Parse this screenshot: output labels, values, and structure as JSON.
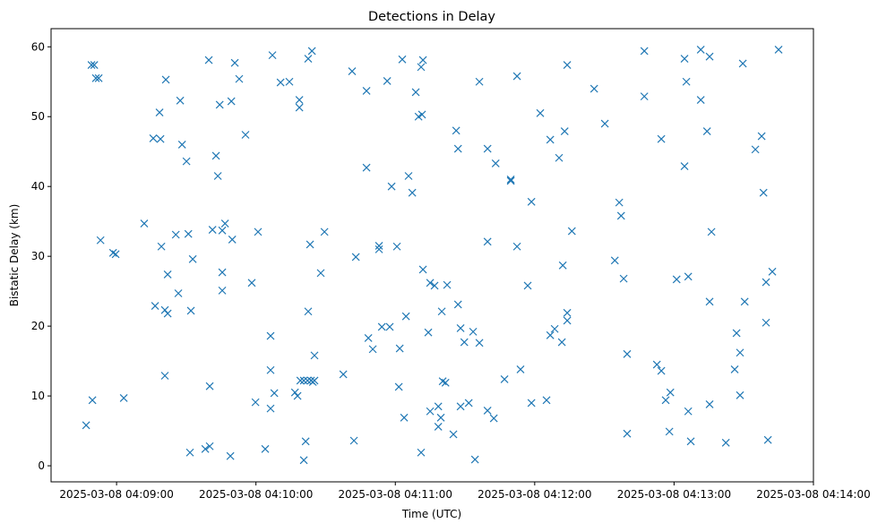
{
  "chart_data": {
    "type": "scatter",
    "title": "Detections in Delay",
    "xlabel": "Time (UTC)",
    "ylabel": "Bistatic Delay (km)",
    "x_units": "seconds since 2025-03-08 04:09:00",
    "xlim": [
      -28.2,
      300
    ],
    "ylim": [
      -2.3,
      62.6
    ],
    "x_ticks": [
      0,
      60,
      120,
      180,
      240,
      300
    ],
    "x_tick_labels": [
      "2025-03-08 04:09:00",
      "2025-03-08 04:10:00",
      "2025-03-08 04:11:00",
      "2025-03-08 04:12:00",
      "2025-03-08 04:13:00",
      "2025-03-08 04:14:00"
    ],
    "y_ticks": [
      0,
      10,
      20,
      30,
      40,
      50,
      60
    ],
    "y_tick_labels": [
      "0",
      "10",
      "20",
      "30",
      "40",
      "50",
      "60"
    ],
    "grid": false,
    "marker": "x",
    "color": "#1f77b4",
    "series": [
      {
        "name": "detections",
        "points": [
          [
            -13.1,
            5.8
          ],
          [
            -10.8,
            57.4
          ],
          [
            -9.6,
            57.4
          ],
          [
            -10.4,
            9.4
          ],
          [
            -8.9,
            55.5
          ],
          [
            -7.7,
            55.5
          ],
          [
            -6.9,
            32.3
          ],
          [
            -1.5,
            30.5
          ],
          [
            -0.4,
            30.3
          ],
          [
            3.1,
            9.7
          ],
          [
            11.9,
            34.7
          ],
          [
            15.8,
            46.9
          ],
          [
            18.9,
            46.8
          ],
          [
            16.6,
            22.9
          ],
          [
            18.5,
            50.6
          ],
          [
            19.3,
            31.4
          ],
          [
            21.2,
            55.3
          ],
          [
            20.8,
            22.3
          ],
          [
            22.0,
            21.8
          ],
          [
            22.0,
            27.4
          ],
          [
            20.8,
            12.9
          ],
          [
            25.5,
            33.1
          ],
          [
            26.6,
            24.7
          ],
          [
            27.4,
            52.3
          ],
          [
            28.2,
            46.0
          ],
          [
            30.1,
            43.6
          ],
          [
            30.9,
            33.2
          ],
          [
            32.0,
            22.2
          ],
          [
            32.8,
            29.6
          ],
          [
            31.6,
            1.9
          ],
          [
            38.2,
            2.4
          ],
          [
            40.1,
            2.8
          ],
          [
            39.7,
            58.1
          ],
          [
            40.1,
            11.4
          ],
          [
            41.3,
            33.8
          ],
          [
            42.8,
            44.4
          ],
          [
            43.6,
            41.5
          ],
          [
            44.4,
            51.7
          ],
          [
            45.5,
            33.7
          ],
          [
            46.7,
            34.7
          ],
          [
            45.5,
            27.7
          ],
          [
            45.5,
            25.1
          ],
          [
            49.4,
            52.2
          ],
          [
            49.8,
            32.4
          ],
          [
            49.0,
            1.4
          ],
          [
            50.9,
            57.7
          ],
          [
            52.8,
            55.4
          ],
          [
            55.5,
            47.4
          ],
          [
            58.2,
            26.2
          ],
          [
            60.9,
            33.5
          ],
          [
            59.8,
            9.1
          ],
          [
            64.0,
            2.4
          ],
          [
            66.3,
            18.6
          ],
          [
            66.3,
            13.7
          ],
          [
            66.3,
            8.2
          ],
          [
            67.9,
            10.4
          ],
          [
            67.1,
            58.8
          ],
          [
            70.6,
            54.9
          ],
          [
            74.4,
            55.0
          ],
          [
            76.8,
            10.5
          ],
          [
            77.9,
            10.0
          ],
          [
            78.7,
            52.4
          ],
          [
            78.7,
            51.3
          ],
          [
            79.1,
            12.2
          ],
          [
            80.6,
            12.2
          ],
          [
            82.2,
            12.2
          ],
          [
            83.7,
            12.2
          ],
          [
            85.2,
            12.2
          ],
          [
            84.5,
            12.0
          ],
          [
            81.4,
            3.5
          ],
          [
            80.6,
            0.8
          ],
          [
            82.5,
            58.3
          ],
          [
            84.1,
            59.4
          ],
          [
            83.3,
            31.7
          ],
          [
            82.5,
            22.1
          ],
          [
            85.2,
            15.8
          ],
          [
            87.9,
            27.6
          ],
          [
            89.5,
            33.5
          ],
          [
            97.6,
            13.1
          ],
          [
            101.4,
            56.5
          ],
          [
            102.2,
            3.6
          ],
          [
            103.0,
            29.9
          ],
          [
            107.6,
            53.7
          ],
          [
            107.6,
            42.7
          ],
          [
            108.4,
            18.3
          ],
          [
            110.3,
            16.7
          ],
          [
            113.0,
            31.5
          ],
          [
            113.0,
            31.0
          ],
          [
            114.2,
            19.9
          ],
          [
            116.5,
            55.1
          ],
          [
            117.6,
            19.9
          ],
          [
            118.4,
            40.0
          ],
          [
            120.7,
            31.4
          ],
          [
            121.5,
            11.3
          ],
          [
            121.9,
            16.8
          ],
          [
            123.0,
            58.2
          ],
          [
            123.8,
            6.9
          ],
          [
            124.6,
            21.4
          ],
          [
            125.7,
            41.5
          ],
          [
            127.3,
            39.1
          ],
          [
            128.8,
            53.5
          ],
          [
            130.0,
            50.0
          ],
          [
            131.5,
            50.3
          ],
          [
            131.1,
            57.1
          ],
          [
            131.9,
            58.1
          ],
          [
            131.1,
            1.9
          ],
          [
            131.9,
            28.1
          ],
          [
            134.2,
            19.1
          ],
          [
            135.0,
            26.2
          ],
          [
            136.9,
            25.8
          ],
          [
            135.0,
            7.8
          ],
          [
            138.5,
            8.5
          ],
          [
            139.6,
            6.9
          ],
          [
            138.5,
            5.6
          ],
          [
            140.0,
            22.1
          ],
          [
            140.4,
            12.1
          ],
          [
            141.6,
            11.9
          ],
          [
            142.3,
            25.9
          ],
          [
            145.0,
            4.5
          ],
          [
            146.2,
            48.0
          ],
          [
            147.0,
            45.4
          ],
          [
            147.0,
            23.1
          ],
          [
            148.1,
            19.7
          ],
          [
            148.1,
            8.5
          ],
          [
            149.7,
            17.7
          ],
          [
            151.6,
            9.0
          ],
          [
            153.5,
            19.2
          ],
          [
            154.3,
            0.9
          ],
          [
            156.2,
            55.0
          ],
          [
            156.2,
            17.6
          ],
          [
            159.7,
            45.4
          ],
          [
            159.7,
            32.1
          ],
          [
            159.7,
            7.9
          ],
          [
            162.4,
            6.8
          ],
          [
            163.2,
            43.3
          ],
          [
            167.0,
            12.4
          ],
          [
            169.7,
            41.0
          ],
          [
            169.7,
            40.8
          ],
          [
            172.4,
            55.8
          ],
          [
            172.4,
            31.4
          ],
          [
            173.9,
            13.8
          ],
          [
            177.0,
            25.8
          ],
          [
            178.6,
            37.8
          ],
          [
            178.6,
            9.0
          ],
          [
            182.4,
            50.5
          ],
          [
            185.1,
            9.4
          ],
          [
            186.7,
            46.7
          ],
          [
            186.7,
            18.7
          ],
          [
            188.6,
            19.6
          ],
          [
            190.5,
            44.1
          ],
          [
            191.7,
            17.7
          ],
          [
            192.1,
            28.7
          ],
          [
            192.9,
            47.9
          ],
          [
            194.0,
            57.4
          ],
          [
            194.0,
            21.9
          ],
          [
            194.0,
            20.8
          ],
          [
            196.0,
            33.6
          ],
          [
            205.6,
            54.0
          ],
          [
            210.2,
            49.0
          ],
          [
            214.5,
            29.4
          ],
          [
            216.4,
            37.7
          ],
          [
            217.2,
            35.8
          ],
          [
            218.3,
            26.8
          ],
          [
            219.8,
            4.6
          ],
          [
            219.8,
            16.0
          ],
          [
            227.2,
            59.4
          ],
          [
            227.2,
            52.9
          ],
          [
            232.6,
            14.5
          ],
          [
            234.5,
            13.6
          ],
          [
            234.5,
            46.8
          ],
          [
            236.4,
            9.4
          ],
          [
            238.0,
            4.9
          ],
          [
            238.4,
            10.5
          ],
          [
            241.1,
            26.7
          ],
          [
            244.5,
            58.3
          ],
          [
            245.3,
            55.0
          ],
          [
            244.5,
            42.9
          ],
          [
            246.1,
            7.8
          ],
          [
            246.1,
            27.1
          ],
          [
            247.2,
            3.5
          ],
          [
            251.5,
            59.6
          ],
          [
            251.5,
            52.4
          ],
          [
            254.2,
            47.9
          ],
          [
            255.3,
            58.6
          ],
          [
            255.3,
            23.5
          ],
          [
            256.1,
            33.5
          ],
          [
            255.3,
            8.8
          ],
          [
            262.3,
            3.3
          ],
          [
            266.1,
            13.8
          ],
          [
            266.9,
            19.0
          ],
          [
            268.4,
            16.2
          ],
          [
            268.4,
            10.1
          ],
          [
            269.6,
            57.6
          ],
          [
            270.4,
            23.5
          ],
          [
            275.0,
            45.3
          ],
          [
            277.7,
            47.2
          ],
          [
            278.5,
            39.1
          ],
          [
            279.6,
            26.3
          ],
          [
            279.6,
            20.5
          ],
          [
            280.4,
            3.7
          ],
          [
            282.3,
            27.8
          ],
          [
            285.0,
            59.6
          ]
        ]
      }
    ]
  }
}
